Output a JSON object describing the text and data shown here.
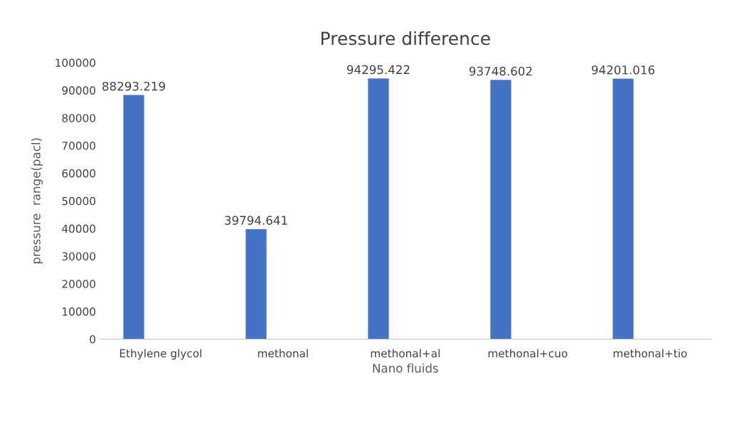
{
  "chart_data": {
    "type": "bar",
    "title": "Pressure difference",
    "xlabel": "Nano fluids",
    "ylabel": "pressure  range(pacl)",
    "categories": [
      "Ethylene glycol",
      "methonal",
      "methonal+al",
      "methonal+cuo",
      "methonal+tio"
    ],
    "values": [
      88293.219,
      39794.641,
      94295.422,
      93748.602,
      94201.016
    ],
    "color": "#4472c4",
    "ylim": [
      0,
      100000
    ],
    "yticks": [
      0,
      10000,
      20000,
      30000,
      40000,
      50000,
      60000,
      70000,
      80000,
      90000,
      100000
    ],
    "grid": false,
    "data_labels": true
  }
}
